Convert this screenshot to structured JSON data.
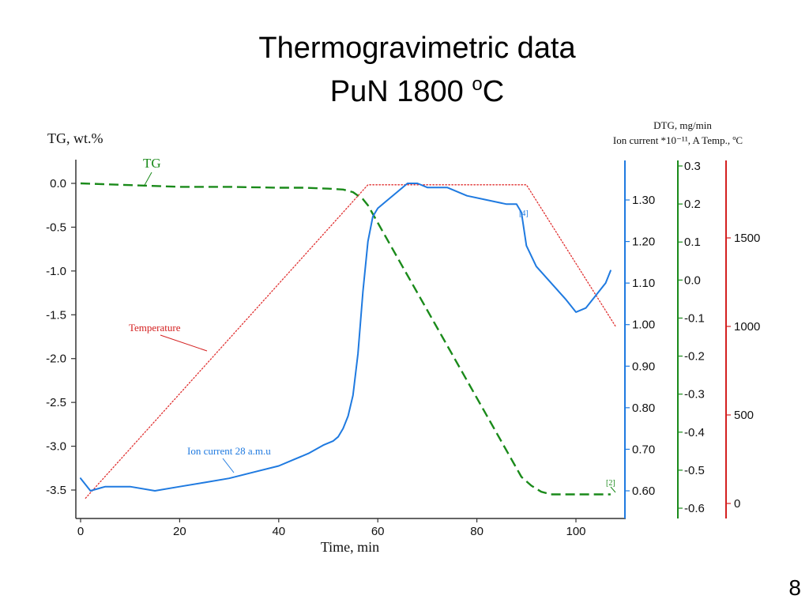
{
  "slide": {
    "title_line1": "Thermogravimetric data",
    "title_line2_main": "PuN 1800 ",
    "title_line2_sup": "o",
    "title_line2_end": "C",
    "page_number": "8"
  },
  "chart_data": {
    "type": "line",
    "xlabel": "Time, min",
    "x_ticks": [
      "0",
      "20",
      "40",
      "60",
      "80",
      "100"
    ],
    "xlim": [
      0,
      110
    ],
    "axes": {
      "tg": {
        "label": "TG, wt.%",
        "range": [
          -3.8,
          0.2
        ],
        "ticks": [
          "0.0",
          "-0.5",
          "-1.0",
          "-1.5",
          "-2.0",
          "-2.5",
          "-3.0",
          "-3.5"
        ],
        "color": "#000000"
      },
      "ion": {
        "label": "Ion current *10⁻¹¹, A",
        "range": [
          0.54,
          1.4
        ],
        "ticks": [
          "1.30",
          "1.20",
          "1.10",
          "1.00",
          "0.90",
          "0.80",
          "0.70",
          "0.60"
        ],
        "color": "#1f7ae0"
      },
      "dtg": {
        "label": "DTG, mg/min",
        "range": [
          -0.62,
          0.32
        ],
        "ticks": [
          "0.3",
          "0.2",
          "0.1",
          "0.0",
          "-0.1",
          "-0.2",
          "-0.3",
          "-0.4",
          "-0.5",
          "-0.6"
        ],
        "color": "#1a8a1a"
      },
      "temp": {
        "label": "Temp., ºC",
        "range": [
          -50,
          2150
        ],
        "ticks": [
          "1500",
          "1000",
          "500",
          "0"
        ],
        "color": "#d42020"
      }
    },
    "right_header": {
      "line1": "DTG, mg/min",
      "line2": "Ion current *10⁻¹¹, A   Temp., ºC"
    },
    "series": [
      {
        "name": "TG",
        "axis": "tg",
        "color": "#1a8a1a",
        "style": "dashed",
        "x": [
          0,
          10,
          20,
          30,
          40,
          45,
          50,
          53,
          55,
          57,
          58,
          60,
          65,
          70,
          75,
          80,
          85,
          89,
          91,
          93,
          95,
          100,
          105,
          107
        ],
        "y": [
          0.0,
          -0.02,
          -0.04,
          -0.04,
          -0.05,
          -0.05,
          -0.06,
          -0.07,
          -0.1,
          -0.18,
          -0.25,
          -0.45,
          -0.95,
          -1.45,
          -1.95,
          -2.45,
          -2.95,
          -3.35,
          -3.45,
          -3.52,
          -3.55,
          -3.55,
          -3.55,
          -3.55
        ]
      },
      {
        "name": "Temperature",
        "axis": "temp",
        "color": "#e03030",
        "style": "dotted",
        "x": [
          1,
          58,
          90,
          108
        ],
        "y": [
          30,
          1800,
          1800,
          1000
        ]
      },
      {
        "name": "Ion current 28 a.m.u",
        "axis": "ion",
        "color": "#1f7ae0",
        "style": "solid",
        "x": [
          0,
          2,
          5,
          10,
          15,
          20,
          25,
          30,
          35,
          40,
          43,
          46,
          49,
          51,
          52,
          53,
          54,
          55,
          56,
          57,
          58,
          59,
          60,
          62,
          64,
          66,
          68,
          70,
          74,
          78,
          82,
          86,
          88,
          89,
          90,
          92,
          95,
          98,
          100,
          102,
          104,
          106,
          107
        ],
        "y": [
          0.63,
          0.6,
          0.61,
          0.61,
          0.6,
          0.61,
          0.62,
          0.63,
          0.645,
          0.66,
          0.675,
          0.69,
          0.71,
          0.72,
          0.73,
          0.75,
          0.78,
          0.83,
          0.93,
          1.08,
          1.2,
          1.26,
          1.28,
          1.3,
          1.32,
          1.34,
          1.34,
          1.33,
          1.33,
          1.31,
          1.3,
          1.29,
          1.29,
          1.27,
          1.19,
          1.14,
          1.1,
          1.06,
          1.03,
          1.04,
          1.07,
          1.1,
          1.13
        ]
      }
    ],
    "annotations": [
      {
        "text": "TG",
        "series": "TG"
      },
      {
        "text": "Temperature",
        "series": "Temperature"
      },
      {
        "text": "Ion current 28 a.m.u",
        "series": "Ion current 28 a.m.u"
      },
      {
        "text": "[4]",
        "series": "Ion current 28 a.m.u"
      },
      {
        "text": "[2]",
        "series": "TG"
      }
    ],
    "grid": false
  }
}
